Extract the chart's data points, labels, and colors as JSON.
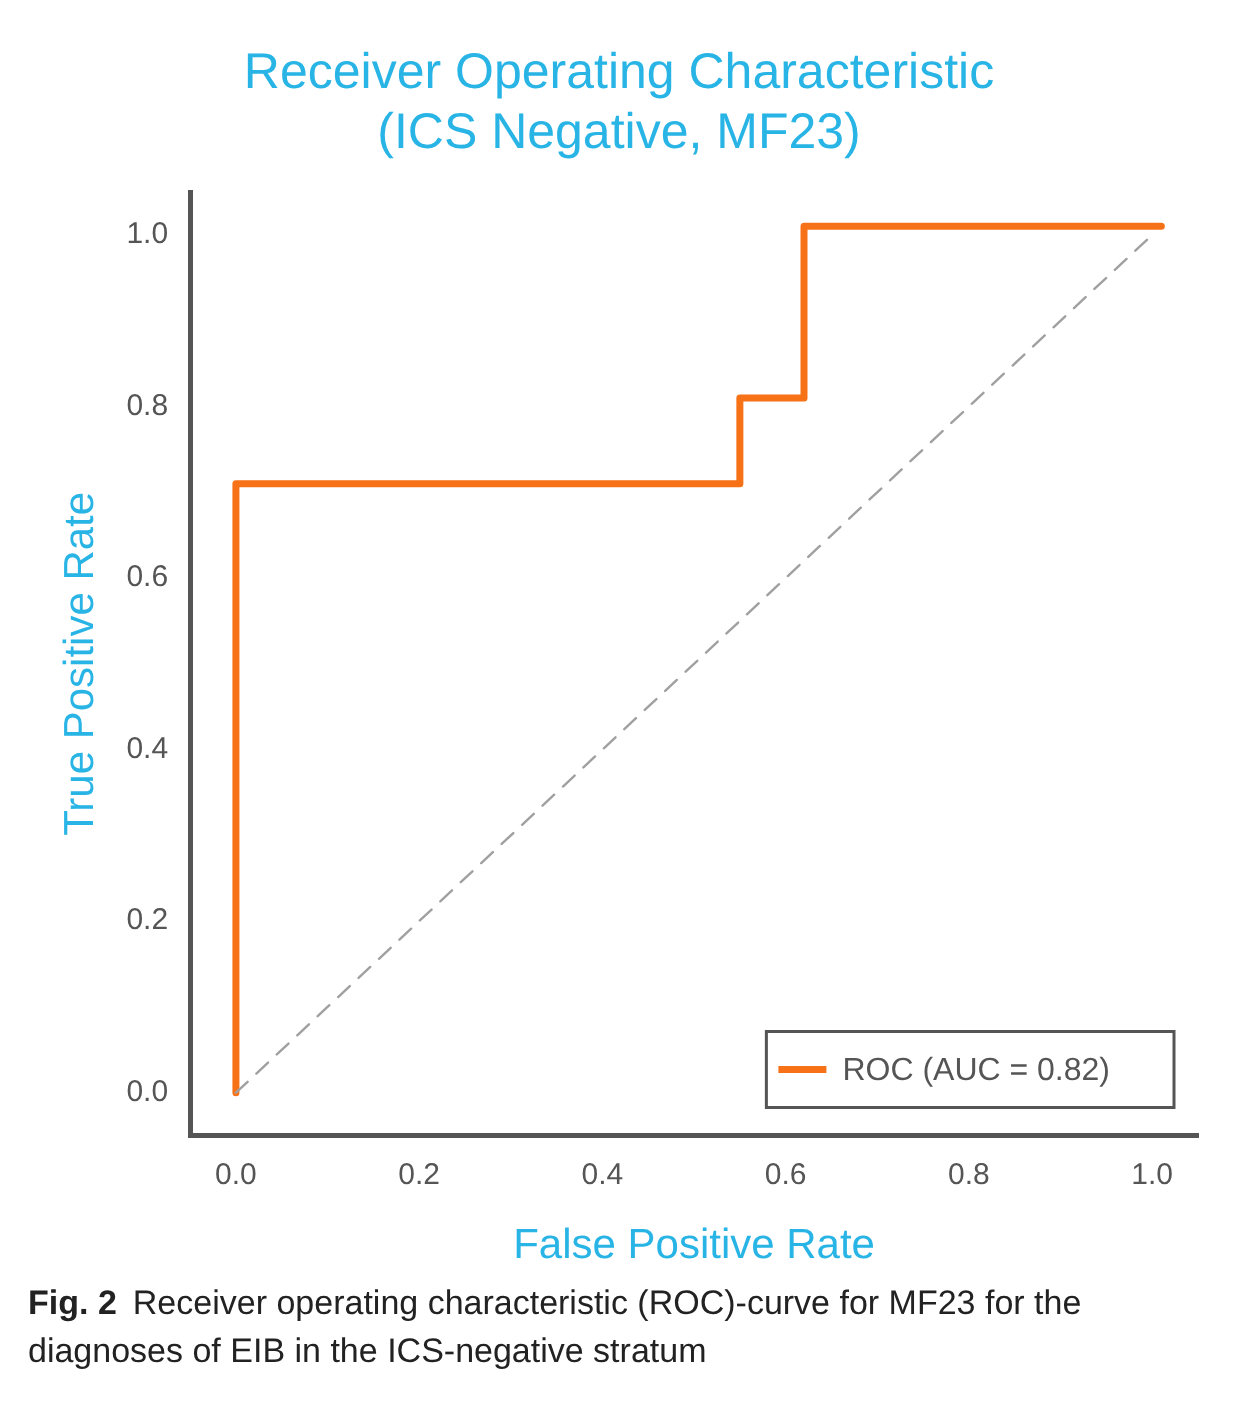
{
  "chart_data": {
    "type": "line",
    "title": [
      "Receiver Operating Characteristic",
      "(ICS Negative, MF23)"
    ],
    "xlabel": "False Positive Rate",
    "ylabel": "True Positive Rate",
    "xlim": [
      -0.05,
      1.05
    ],
    "ylim": [
      -0.05,
      1.05
    ],
    "xticks": [
      {
        "value": 0,
        "label": "0.0"
      },
      0.2,
      0.4,
      0.6,
      0.8,
      {
        "value": 1,
        "label": "1.0"
      }
    ],
    "yticks": [
      {
        "value": 0,
        "label": "0.0"
      },
      0.2,
      0.4,
      0.6,
      0.8,
      {
        "value": 1,
        "label": "1.0"
      }
    ],
    "grid": false,
    "legend": "bottom right",
    "marker": "none",
    "series": [
      {
        "name": "ROC (AUC = 0.82)",
        "color": "#f77117",
        "line_style": "solid",
        "x": [
          0,
          0,
          0.55,
          0.55,
          0.62,
          0.62,
          1.01
        ],
        "values": [
          0,
          0.71,
          0.71,
          0.81,
          0.81,
          1.01,
          1.01
        ]
      },
      {
        "color": "#a0a0a0",
        "line_style": "dashed",
        "x": [
          0,
          1
        ],
        "values": [
          0,
          1
        ]
      }
    ],
    "annotations": [
      "Fig. 2",
      "Receiver operating characteristic (ROC)-curve for MF23 for the diagnoses of EIB in the ICS-negative stratum"
    ]
  }
}
